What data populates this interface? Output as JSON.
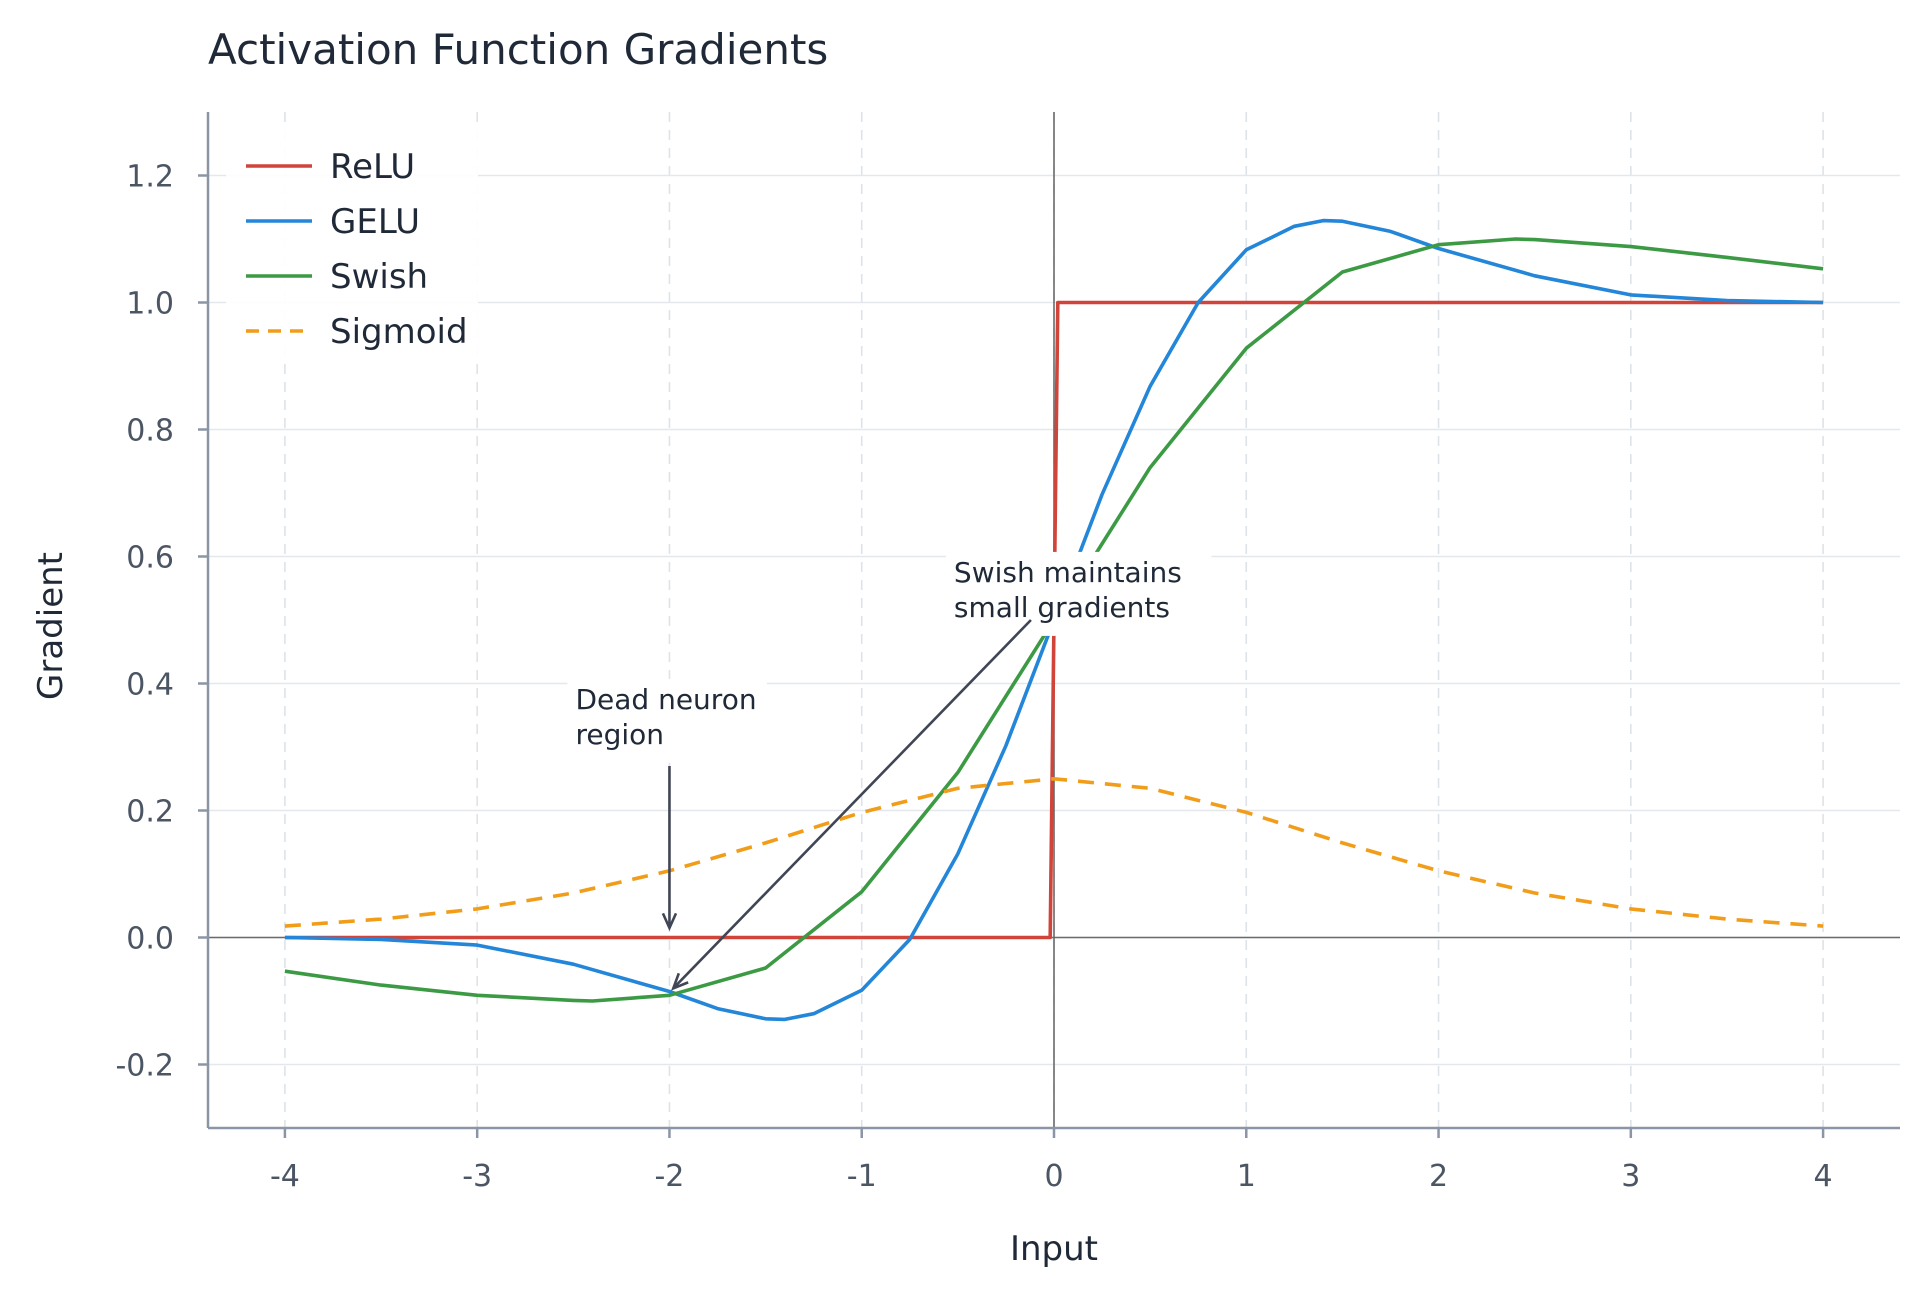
{
  "chart_data": {
    "type": "line",
    "title": "Activation Function Gradients",
    "xlabel": "Input",
    "ylabel": "Gradient",
    "xlim": [
      -4.4,
      4.4
    ],
    "ylim": [
      -0.3,
      1.3
    ],
    "xticks": [
      -4,
      -3,
      -2,
      -1,
      0,
      1,
      2,
      3,
      4
    ],
    "xtick_labels": [
      "-4",
      "-3",
      "-2",
      "-1",
      "0",
      "1",
      "2",
      "3",
      "4"
    ],
    "yticks": [
      -0.2,
      0.0,
      0.2,
      0.4,
      0.6,
      0.8,
      1.0,
      1.2
    ],
    "ytick_labels": [
      "-0.2",
      "0.0",
      "0.2",
      "0.4",
      "0.6",
      "0.8",
      "1.0",
      "1.2"
    ],
    "grid": true,
    "legend_position": "top-left",
    "series": [
      {
        "name": "ReLU",
        "color": "#d0443a",
        "style": "solid",
        "x": [
          -4,
          -0.02,
          0.02,
          4
        ],
        "values": [
          0,
          0,
          1,
          1
        ]
      },
      {
        "name": "GELU",
        "color": "#2386d8",
        "style": "solid",
        "x": [
          -4,
          -3.5,
          -3,
          -2.5,
          -2,
          -1.75,
          -1.5,
          -1.4,
          -1.25,
          -1,
          -0.75,
          -0.5,
          -0.25,
          0,
          0.25,
          0.5,
          0.75,
          1,
          1.25,
          1.4,
          1.5,
          1.75,
          2,
          2.5,
          3,
          3.5,
          4
        ],
        "values": [
          0,
          -0.003,
          -0.012,
          -0.042,
          -0.085,
          -0.112,
          -0.128,
          -0.129,
          -0.12,
          -0.083,
          -0.003,
          0.132,
          0.302,
          0.5,
          0.698,
          0.868,
          1.0,
          1.083,
          1.12,
          1.129,
          1.128,
          1.112,
          1.085,
          1.042,
          1.012,
          1.003,
          1.0
        ]
      },
      {
        "name": "Swish",
        "color": "#3c9a44",
        "style": "solid",
        "x": [
          -4,
          -3.5,
          -3,
          -2.5,
          -2.4,
          -2,
          -1.5,
          -1,
          -0.5,
          0,
          0.5,
          1,
          1.5,
          2,
          2.4,
          2.5,
          3,
          3.5,
          4
        ],
        "values": [
          -0.053,
          -0.075,
          -0.091,
          -0.099,
          -0.1,
          -0.091,
          -0.048,
          0.072,
          0.26,
          0.5,
          0.74,
          0.928,
          1.048,
          1.091,
          1.1,
          1.099,
          1.088,
          1.071,
          1.053
        ]
      },
      {
        "name": "Sigmoid",
        "color": "#f19d1a",
        "style": "dashed",
        "x": [
          -4,
          -3.5,
          -3,
          -2.5,
          -2,
          -1.5,
          -1,
          -0.5,
          0,
          0.5,
          1,
          1.5,
          2,
          2.5,
          3,
          3.5,
          4
        ],
        "values": [
          0.018,
          0.029,
          0.045,
          0.07,
          0.105,
          0.149,
          0.197,
          0.235,
          0.25,
          0.235,
          0.197,
          0.149,
          0.105,
          0.07,
          0.045,
          0.029,
          0.018
        ]
      }
    ],
    "annotations": [
      {
        "lines": [
          "Dead neuron",
          "region"
        ],
        "text_at": [
          -2.0,
          0.36
        ],
        "arrow_from": [
          -2.0,
          0.27
        ],
        "arrow_to": [
          -2.0,
          0.015
        ]
      },
      {
        "lines": [
          "Swish maintains",
          "small gradients"
        ],
        "text_at": [
          -0.25,
          0.56
        ],
        "arrow_from": [
          -0.12,
          0.5
        ],
        "arrow_to": [
          -1.98,
          -0.08
        ]
      }
    ]
  }
}
